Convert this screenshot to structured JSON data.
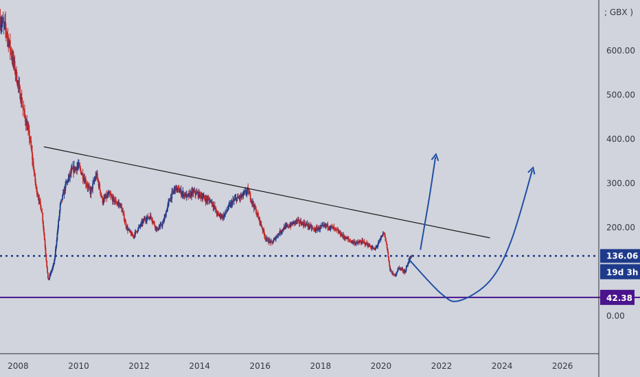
{
  "chart_data": {
    "type": "candlestick",
    "title": "",
    "xlabel": "",
    "ylabel": "",
    "y_unit_label": "; GBX )",
    "x_ticks": [
      "2008",
      "2010",
      "2012",
      "2014",
      "2016",
      "2018",
      "2020",
      "2022",
      "2024",
      "2026"
    ],
    "y_ticks": [
      "600.00",
      "500.00",
      "400.00",
      "300.00",
      "200.00",
      "0.00"
    ],
    "xlim": [
      2007.4,
      2027.2
    ],
    "ylim": [
      -85,
      715
    ],
    "grid": false,
    "colors": {
      "up": "#1e3a8a",
      "down": "#c62828",
      "background": "#d1d4dc",
      "axis_line": "#2a2e39",
      "price_line": "#1e3a8a",
      "support_line": "#4a148c",
      "arrow": "#1f4ea6"
    },
    "price_current": {
      "value": 136.06,
      "label": "136.06",
      "countdown": "19d 3h"
    },
    "support": {
      "value": 42.38,
      "label": "42.38"
    },
    "trendline": {
      "start": [
        2008.85,
        383
      ],
      "end": [
        2023.6,
        177
      ]
    },
    "projected_paths": [
      {
        "name": "direct-breakout",
        "points": [
          [
            2021.3,
            150
          ],
          [
            2021.4,
            190
          ],
          [
            2021.6,
            270
          ],
          [
            2021.8,
            360
          ]
        ]
      },
      {
        "name": "rounding-bottom",
        "points": [
          [
            2020.9,
            130
          ],
          [
            2022.0,
            50
          ],
          [
            2022.6,
            35
          ],
          [
            2023.6,
            80
          ],
          [
            2024.3,
            170
          ],
          [
            2025.0,
            330
          ]
        ]
      }
    ],
    "key_points": [
      [
        2007.4,
        670
      ],
      [
        2007.6,
        650
      ],
      [
        2007.9,
        560
      ],
      [
        2008.2,
        460
      ],
      [
        2008.4,
        400
      ],
      [
        2008.6,
        290
      ],
      [
        2008.8,
        235
      ],
      [
        2009.0,
        80
      ],
      [
        2009.2,
        120
      ],
      [
        2009.4,
        250
      ],
      [
        2009.6,
        300
      ],
      [
        2009.8,
        330
      ],
      [
        2010.0,
        340
      ],
      [
        2010.2,
        310
      ],
      [
        2010.4,
        280
      ],
      [
        2010.6,
        320
      ],
      [
        2010.8,
        260
      ],
      [
        2011.0,
        275
      ],
      [
        2011.2,
        260
      ],
      [
        2011.4,
        250
      ],
      [
        2011.6,
        200
      ],
      [
        2011.8,
        180
      ],
      [
        2012.0,
        200
      ],
      [
        2012.2,
        220
      ],
      [
        2012.4,
        225
      ],
      [
        2012.6,
        195
      ],
      [
        2012.8,
        210
      ],
      [
        2013.0,
        260
      ],
      [
        2013.2,
        290
      ],
      [
        2013.4,
        280
      ],
      [
        2013.6,
        270
      ],
      [
        2013.8,
        280
      ],
      [
        2014.0,
        275
      ],
      [
        2014.2,
        265
      ],
      [
        2014.4,
        260
      ],
      [
        2014.6,
        230
      ],
      [
        2014.8,
        225
      ],
      [
        2015.0,
        250
      ],
      [
        2015.2,
        265
      ],
      [
        2015.4,
        270
      ],
      [
        2015.6,
        285
      ],
      [
        2015.8,
        250
      ],
      [
        2016.0,
        215
      ],
      [
        2016.2,
        175
      ],
      [
        2016.4,
        165
      ],
      [
        2016.6,
        185
      ],
      [
        2016.8,
        200
      ],
      [
        2017.0,
        205
      ],
      [
        2017.2,
        215
      ],
      [
        2017.4,
        210
      ],
      [
        2017.6,
        205
      ],
      [
        2017.8,
        195
      ],
      [
        2018.0,
        200
      ],
      [
        2018.2,
        205
      ],
      [
        2018.4,
        200
      ],
      [
        2018.6,
        190
      ],
      [
        2018.8,
        178
      ],
      [
        2019.0,
        170
      ],
      [
        2019.2,
        165
      ],
      [
        2019.4,
        168
      ],
      [
        2019.6,
        160
      ],
      [
        2019.8,
        150
      ],
      [
        2020.0,
        175
      ],
      [
        2020.1,
        190
      ],
      [
        2020.2,
        160
      ],
      [
        2020.3,
        105
      ],
      [
        2020.45,
        90
      ],
      [
        2020.6,
        110
      ],
      [
        2020.8,
        100
      ],
      [
        2020.95,
        130
      ],
      [
        2021.05,
        136
      ]
    ]
  }
}
